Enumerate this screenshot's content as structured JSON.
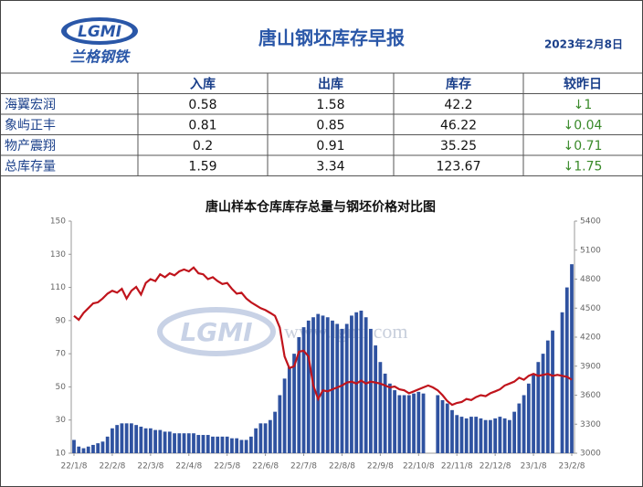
{
  "header": {
    "logo": "LGMI",
    "brand": "兰格钢铁",
    "title": "唐山钢坯库存早报",
    "date": "2023年2月8日"
  },
  "table": {
    "columns": [
      "入库",
      "出库",
      "库存",
      "较昨日"
    ],
    "rows": [
      [
        "海翼宏润",
        0.58,
        1.58,
        42.2,
        "↓1"
      ],
      [
        "象屿正丰",
        0.81,
        0.85,
        46.22,
        "↓0.04"
      ],
      [
        "物产震翔",
        0.2,
        0.91,
        35.25,
        "↓0.71"
      ],
      [
        "总库存量",
        1.59,
        3.34,
        123.67,
        "↓1.75"
      ]
    ]
  },
  "chart_data": {
    "type": "combo",
    "title": "唐山样本仓库库存总量与钢坯价格对比图",
    "watermark": "www.lgmi.com",
    "categories": [
      "22/1/8",
      null,
      null,
      null,
      null,
      null,
      null,
      null,
      "22/2/8",
      null,
      null,
      null,
      null,
      null,
      null,
      null,
      "22/3/8",
      null,
      null,
      null,
      null,
      null,
      null,
      null,
      "22/4/8",
      null,
      null,
      null,
      null,
      null,
      null,
      null,
      "22/5/8",
      null,
      null,
      null,
      null,
      null,
      null,
      null,
      "22/6/8",
      null,
      null,
      null,
      null,
      null,
      null,
      null,
      "22/7/8",
      null,
      null,
      null,
      null,
      null,
      null,
      null,
      "22/8/8",
      null,
      null,
      null,
      null,
      null,
      null,
      null,
      "22/9/8",
      null,
      null,
      null,
      null,
      null,
      null,
      null,
      "22/10/8",
      null,
      null,
      null,
      null,
      null,
      null,
      null,
      "22/11/8",
      null,
      null,
      null,
      null,
      null,
      null,
      null,
      "22/12/8",
      null,
      null,
      null,
      null,
      null,
      null,
      null,
      "23/1/8",
      null,
      null,
      null,
      null,
      null,
      null,
      null,
      "23/2/8"
    ],
    "series": [
      {
        "type": "bar",
        "color": "#2f52a0",
        "values": [
          18,
          14,
          13,
          14,
          15,
          16,
          17,
          20,
          25,
          27,
          28,
          28,
          28,
          27,
          26,
          25,
          25,
          24,
          24,
          23,
          23,
          22,
          22,
          22,
          22,
          22,
          21,
          21,
          21,
          20,
          20,
          20,
          20,
          19,
          19,
          18,
          18,
          20,
          25,
          28,
          28,
          30,
          35,
          45,
          55,
          62,
          70,
          80,
          86,
          90,
          92,
          94,
          93,
          92,
          90,
          88,
          85,
          88,
          93,
          95,
          96,
          92,
          85,
          75,
          65,
          58,
          52,
          48,
          45,
          45,
          45,
          46,
          47,
          46,
          null,
          null,
          45,
          42,
          40,
          36,
          33,
          32,
          31,
          32,
          32,
          31,
          30,
          30,
          31,
          32,
          31,
          30,
          35,
          40,
          45,
          52,
          58,
          65,
          70,
          78,
          84,
          null,
          95,
          110,
          124
        ]
      },
      {
        "type": "line",
        "color": "#c0141c",
        "axis": "y2",
        "values": [
          4420,
          4380,
          4450,
          4500,
          4550,
          4560,
          4600,
          4650,
          4680,
          4660,
          4700,
          4600,
          4680,
          4720,
          4640,
          4760,
          4800,
          4780,
          4850,
          4820,
          4860,
          4840,
          4880,
          4900,
          4880,
          4920,
          4860,
          4850,
          4800,
          4820,
          4780,
          4750,
          4760,
          4700,
          4650,
          4660,
          4600,
          4560,
          4530,
          4500,
          4480,
          4450,
          4420,
          4300,
          4000,
          3880,
          3900,
          4050,
          4060,
          4000,
          3700,
          3560,
          3650,
          3640,
          3660,
          3680,
          3700,
          3730,
          3740,
          3720,
          3750,
          3720,
          3740,
          3730,
          3720,
          3700,
          3680,
          3690,
          3660,
          3650,
          3620,
          3640,
          3660,
          3680,
          3700,
          3680,
          3650,
          3600,
          3540,
          3500,
          3520,
          3530,
          3560,
          3550,
          3580,
          3600,
          3590,
          3620,
          3640,
          3660,
          3700,
          3720,
          3740,
          3780,
          3760,
          3800,
          3820,
          3800,
          3810,
          3820,
          3800,
          3810,
          3800,
          3790,
          3760
        ]
      }
    ],
    "ylim": [
      10,
      150
    ],
    "yticks": [
      10,
      30,
      50,
      70,
      90,
      110,
      130,
      150
    ],
    "y2lim": [
      3000,
      5400
    ],
    "y2ticks": [
      3000,
      3300,
      3600,
      3900,
      4200,
      4500,
      4800,
      5100,
      5400
    ]
  }
}
